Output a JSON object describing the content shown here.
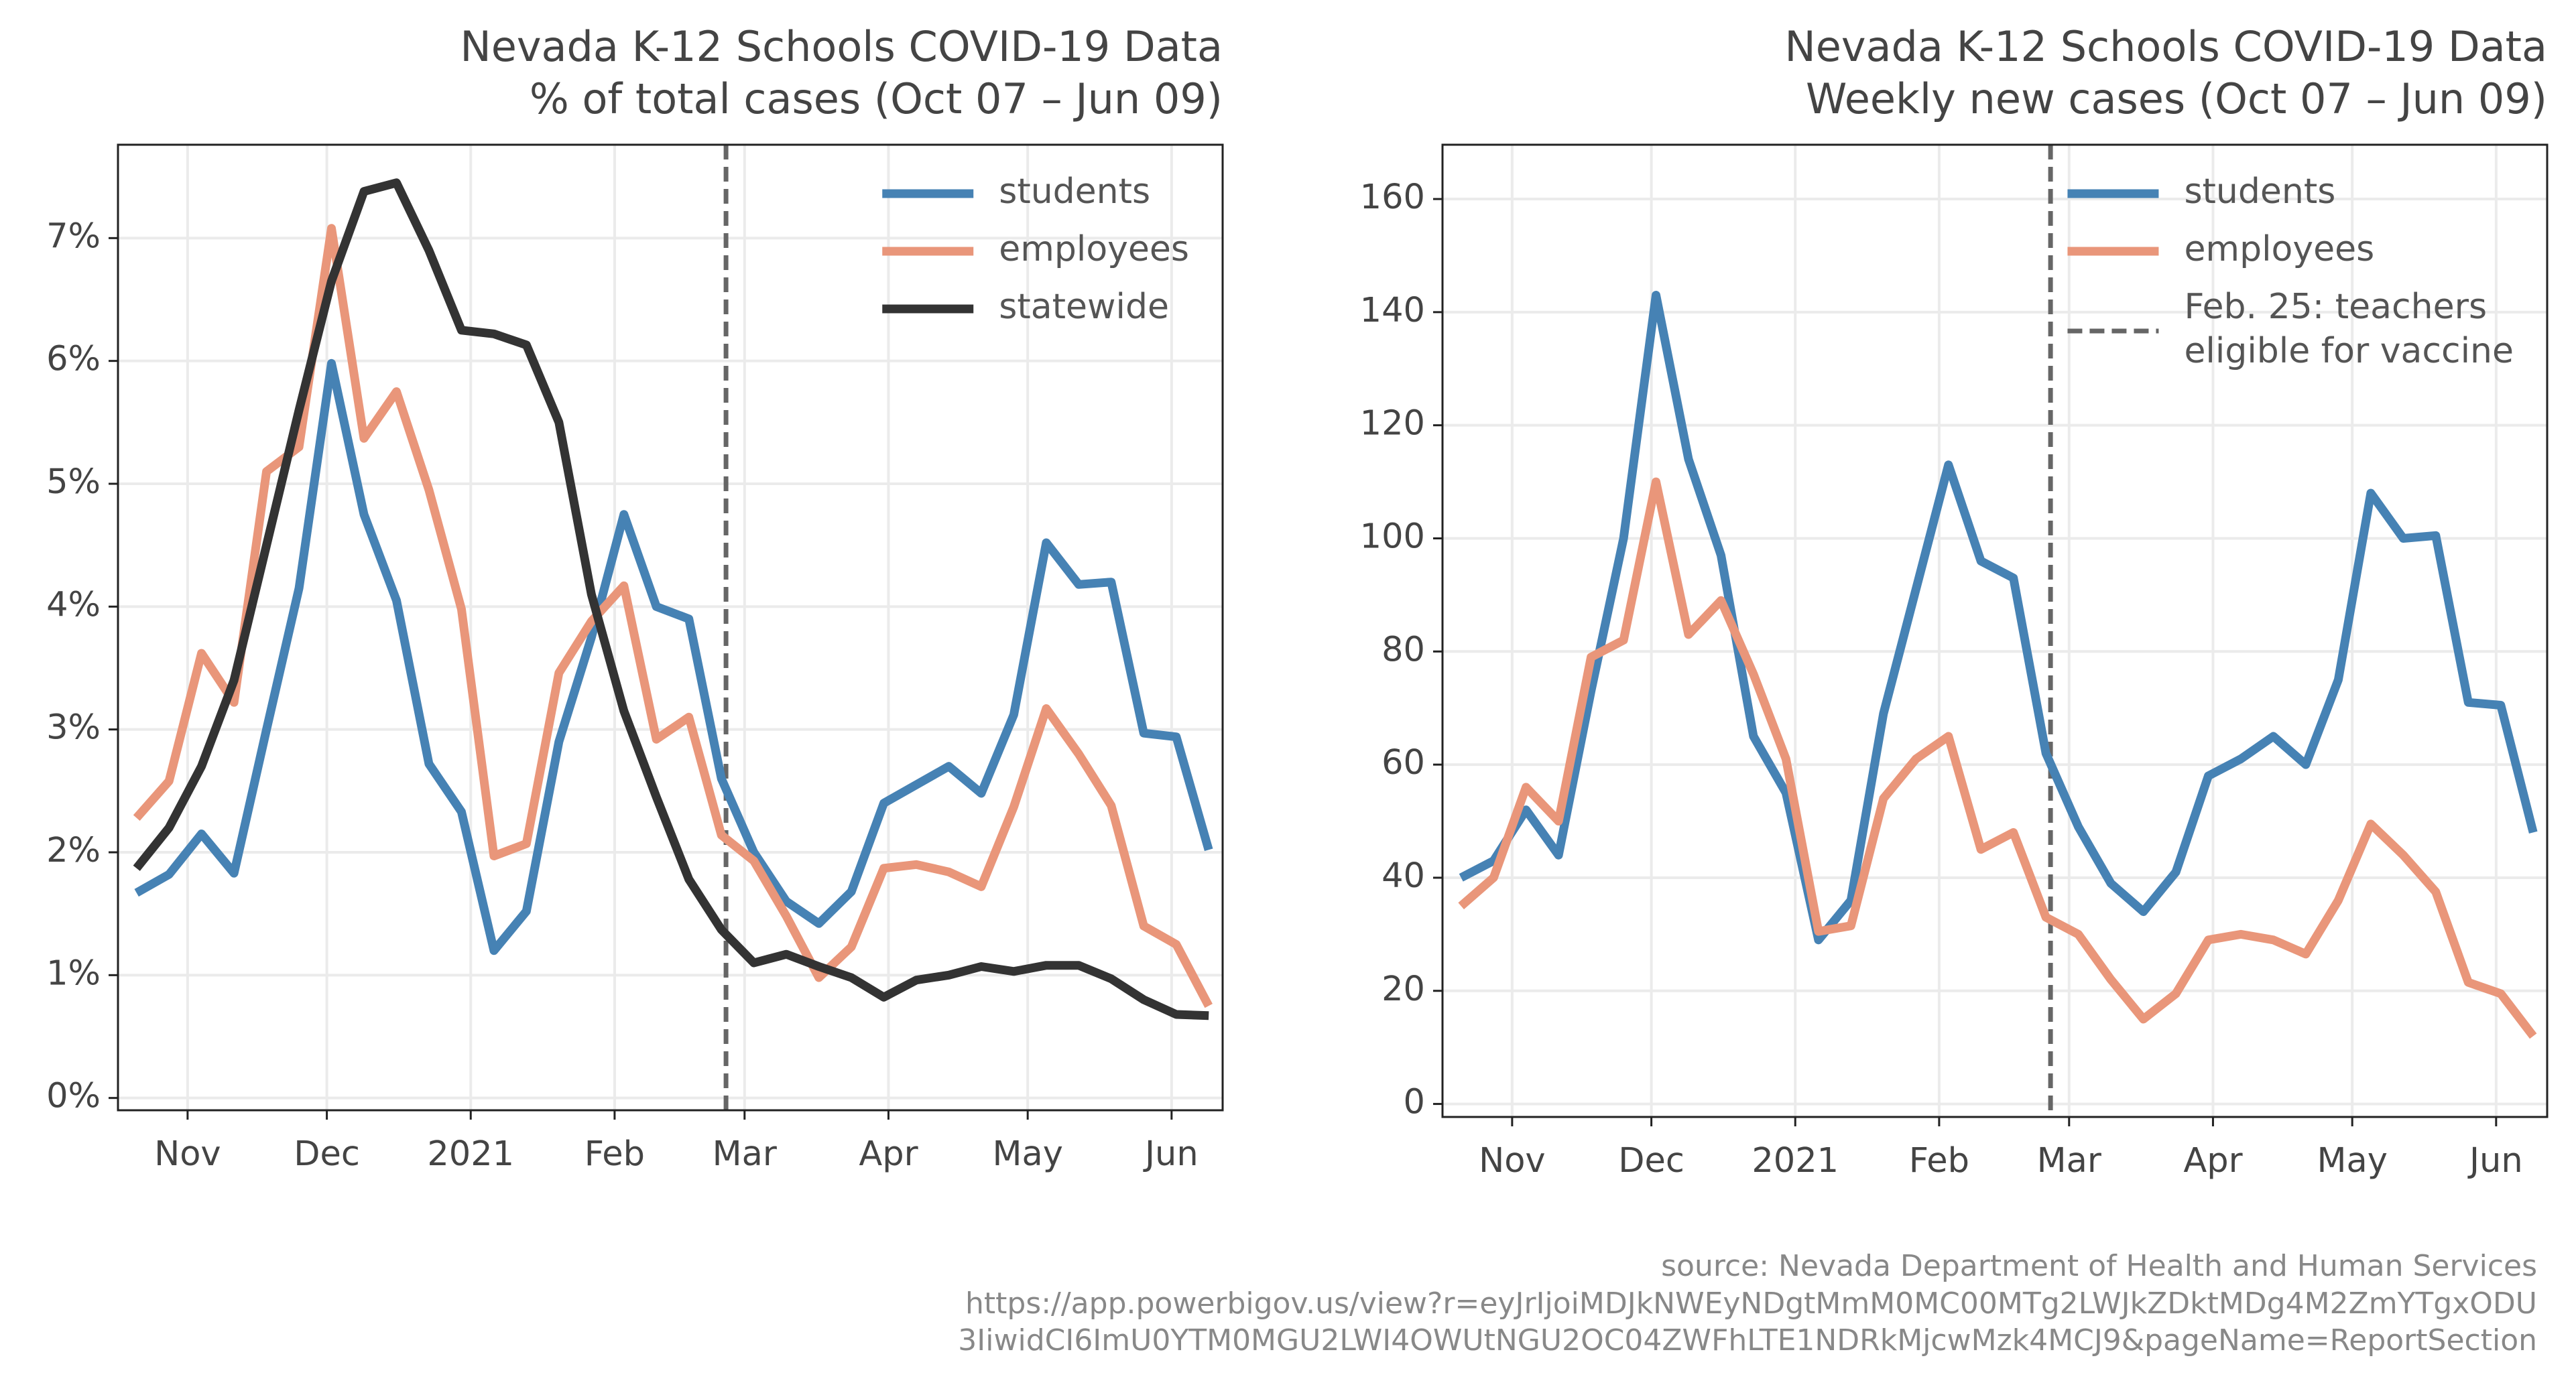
{
  "chart_data": [
    {
      "type": "line",
      "title": "Nevada K-12 Schools COVID-19 Data",
      "subtitle": "% of total cases (Oct 07 – Jun 09)",
      "x": [
        "2020-10-21",
        "2020-10-28",
        "2020-11-04",
        "2020-11-11",
        "2020-11-18",
        "2020-11-25",
        "2020-12-02",
        "2020-12-09",
        "2020-12-16",
        "2020-12-23",
        "2020-12-30",
        "2021-01-06",
        "2021-01-13",
        "2021-01-20",
        "2021-01-27",
        "2021-02-03",
        "2021-02-10",
        "2021-02-17",
        "2021-02-24",
        "2021-03-03",
        "2021-03-10",
        "2021-03-17",
        "2021-03-24",
        "2021-03-31",
        "2021-04-07",
        "2021-04-14",
        "2021-04-21",
        "2021-04-28",
        "2021-05-05",
        "2021-05-12",
        "2021-05-19",
        "2021-05-26",
        "2021-06-02",
        "2021-06-09"
      ],
      "series": [
        {
          "name": "students",
          "color": "#4682b4",
          "values": [
            1.67,
            1.82,
            2.15,
            1.83,
            3.0,
            4.15,
            5.98,
            4.75,
            4.05,
            2.72,
            2.33,
            1.2,
            1.52,
            2.9,
            3.75,
            4.75,
            4.0,
            3.9,
            2.6,
            2.0,
            1.6,
            1.42,
            1.68,
            2.4,
            2.55,
            2.7,
            2.48,
            3.12,
            4.52,
            4.18,
            4.2,
            2.97,
            2.94,
            2.02
          ]
        },
        {
          "name": "employees",
          "color": "#e9967a",
          "values": [
            2.28,
            2.58,
            3.62,
            3.22,
            5.1,
            5.3,
            7.08,
            5.37,
            5.75,
            4.95,
            3.98,
            1.97,
            2.07,
            3.46,
            3.88,
            4.17,
            2.92,
            3.1,
            2.14,
            1.93,
            1.48,
            0.98,
            1.23,
            1.87,
            1.9,
            1.84,
            1.72,
            2.37,
            3.17,
            2.8,
            2.38,
            1.4,
            1.25,
            0.75
          ]
        },
        {
          "name": "statewide",
          "color": "#333333",
          "values": [
            1.87,
            2.2,
            2.7,
            3.4,
            4.5,
            5.6,
            6.65,
            7.38,
            7.45,
            6.9,
            6.25,
            6.22,
            6.13,
            5.5,
            4.1,
            3.15,
            2.45,
            1.78,
            1.37,
            1.1,
            1.17,
            1.07,
            0.98,
            0.82,
            0.96,
            1.0,
            1.07,
            1.03,
            1.08,
            1.08,
            0.97,
            0.8,
            0.68,
            0.67
          ]
        }
      ],
      "xlim": [
        "2020-10-17",
        "2021-06-12"
      ],
      "xticks": [
        {
          "value": "2020-11-01",
          "label": "Nov"
        },
        {
          "value": "2020-12-01",
          "label": "Dec"
        },
        {
          "value": "2021-01-01",
          "label": "2021"
        },
        {
          "value": "2021-02-01",
          "label": "Feb"
        },
        {
          "value": "2021-03-01",
          "label": "Mar"
        },
        {
          "value": "2021-04-01",
          "label": "Apr"
        },
        {
          "value": "2021-05-01",
          "label": "May"
        },
        {
          "value": "2021-06-01",
          "label": "Jun"
        }
      ],
      "ylim": [
        -0.1,
        7.76
      ],
      "yticks": [
        {
          "value": 0,
          "label": "0%"
        },
        {
          "value": 1,
          "label": "1%"
        },
        {
          "value": 2,
          "label": "2%"
        },
        {
          "value": 3,
          "label": "3%"
        },
        {
          "value": 4,
          "label": "4%"
        },
        {
          "value": 5,
          "label": "5%"
        },
        {
          "value": 6,
          "label": "6%"
        },
        {
          "value": 7,
          "label": "7%"
        }
      ],
      "grid": true,
      "legend": "upper right",
      "vline": {
        "x": "2021-02-25",
        "color": "#666666"
      }
    },
    {
      "type": "line",
      "title": "Nevada K-12 Schools COVID-19 Data",
      "subtitle": "Weekly new cases (Oct 07 – Jun 09)",
      "x": [
        "2020-10-21",
        "2020-10-28",
        "2020-11-04",
        "2020-11-11",
        "2020-11-18",
        "2020-11-25",
        "2020-12-02",
        "2020-12-09",
        "2020-12-16",
        "2020-12-23",
        "2020-12-30",
        "2021-01-06",
        "2021-01-13",
        "2021-01-20",
        "2021-01-27",
        "2021-02-03",
        "2021-02-10",
        "2021-02-17",
        "2021-02-24",
        "2021-03-03",
        "2021-03-10",
        "2021-03-17",
        "2021-03-24",
        "2021-03-31",
        "2021-04-07",
        "2021-04-14",
        "2021-04-21",
        "2021-04-28",
        "2021-05-05",
        "2021-05-12",
        "2021-05-19",
        "2021-05-26",
        "2021-06-02",
        "2021-06-09"
      ],
      "series": [
        {
          "name": "students",
          "color": "#4682b4",
          "values": [
            40,
            43,
            52,
            44,
            73,
            100,
            143,
            114,
            97,
            65,
            55,
            29,
            36,
            69,
            91,
            113,
            96,
            93,
            62,
            49,
            39,
            34,
            41,
            58,
            61,
            65,
            60,
            75,
            108,
            100,
            100.5,
            71,
            70.5,
            48
          ]
        },
        {
          "name": "employees",
          "color": "#e9967a",
          "values": [
            35,
            40,
            56,
            50,
            79,
            82,
            110,
            83,
            89,
            76,
            61,
            30.5,
            31.5,
            54,
            61,
            65,
            45,
            48,
            33,
            30,
            22,
            15,
            19.5,
            29,
            30,
            29,
            26.5,
            36,
            49.5,
            44,
            37.5,
            21.5,
            19.5,
            12
          ]
        }
      ],
      "xlim": [
        "2020-10-17",
        "2021-06-12"
      ],
      "xticks": [
        {
          "value": "2020-11-01",
          "label": "Nov"
        },
        {
          "value": "2020-12-01",
          "label": "Dec"
        },
        {
          "value": "2021-01-01",
          "label": "2021"
        },
        {
          "value": "2021-02-01",
          "label": "Feb"
        },
        {
          "value": "2021-03-01",
          "label": "Mar"
        },
        {
          "value": "2021-04-01",
          "label": "Apr"
        },
        {
          "value": "2021-05-01",
          "label": "May"
        },
        {
          "value": "2021-06-01",
          "label": "Jun"
        }
      ],
      "ylim": [
        -2.3,
        169.6
      ],
      "yticks": [
        0,
        20,
        40,
        60,
        80,
        100,
        120,
        140,
        160
      ],
      "grid": true,
      "legend": "upper right",
      "vline": {
        "x": "2021-02-25",
        "color": "#666666",
        "label": [
          "Feb. 25: teachers",
          "eligible for vaccine"
        ]
      }
    }
  ],
  "source_note": [
    "source: Nevada Department of Health and Human Services",
    "https://app.powerbigov.us/view?r=eyJrIjoiMDJkNWEyNDgtMmM0MC00MTg2LWJkZDktMDg4M2ZmYTgxODU",
    "3IiwidCI6ImU0YTM0MGU2LWI4OWUtNGU2OC04ZWFhLTE1NDRkMjcwMzk4MCJ9&pageName=ReportSection"
  ]
}
